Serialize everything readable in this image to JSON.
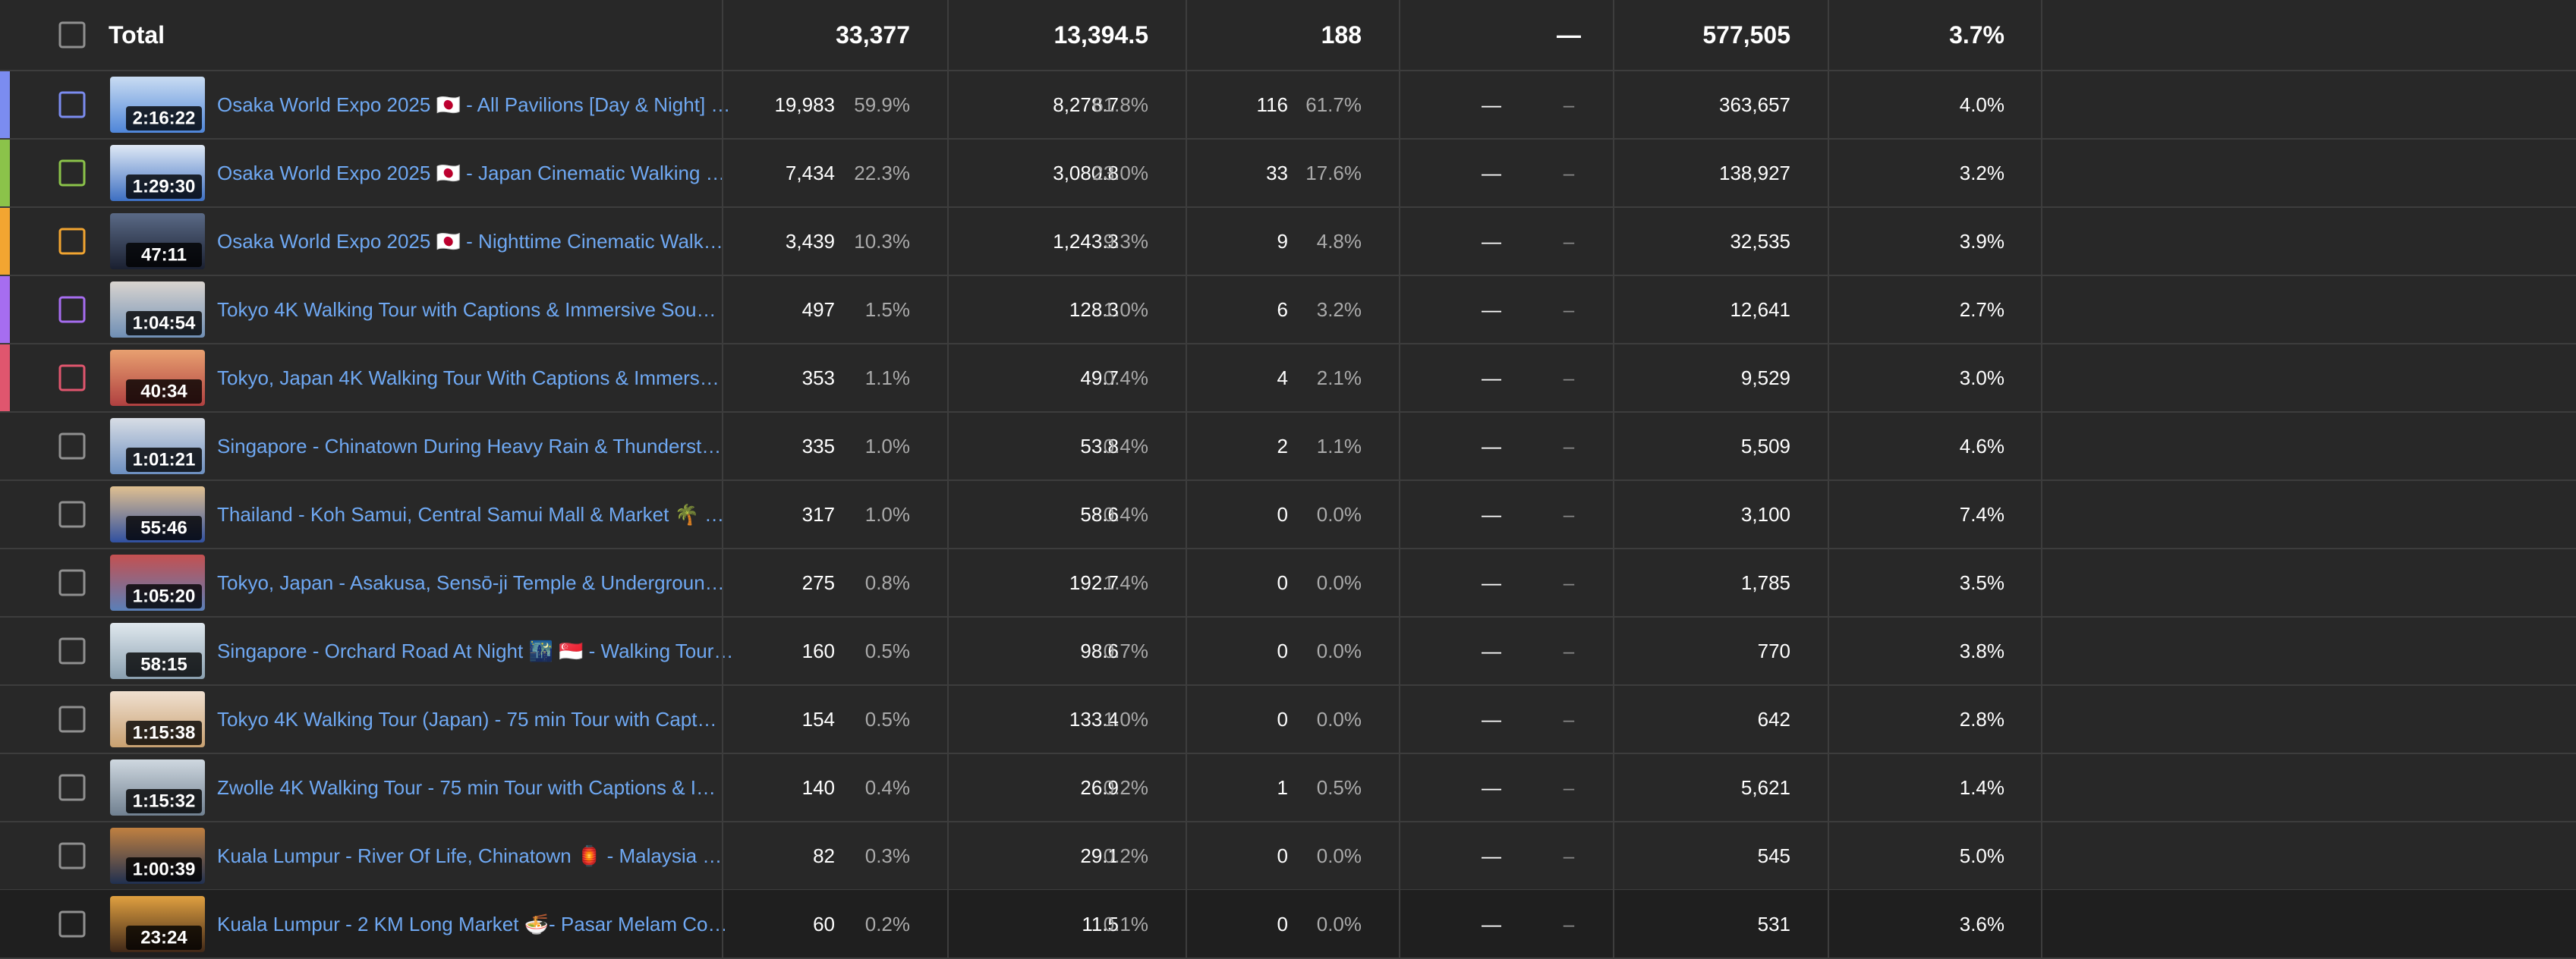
{
  "table": {
    "total": {
      "label": "Total",
      "cells": [
        "33,377",
        "13,394.5",
        "188",
        "—",
        "577,505",
        "3.7%"
      ]
    },
    "rows": [
      {
        "color": "#7b8cf0",
        "duration": "2:16:22",
        "title": "Osaka World Expo 2025 🇯🇵 - All Pavilions [Day & Night] …",
        "cells": [
          "19,983",
          "59.9%",
          "8,278.7",
          "61.8%",
          "116",
          "61.7%",
          "—",
          "–",
          "363,657",
          "4.0%"
        ]
      },
      {
        "color": "#8bc34a",
        "duration": "1:29:30",
        "title": "Osaka World Expo 2025 🇯🇵 - Japan Cinematic Walking …",
        "cells": [
          "7,434",
          "22.3%",
          "3,080.8",
          "23.0%",
          "33",
          "17.6%",
          "—",
          "–",
          "138,927",
          "3.2%"
        ]
      },
      {
        "color": "#f2a531",
        "duration": "47:11",
        "title": "Osaka World Expo 2025 🇯🇵 - Nighttime Cinematic Walk…",
        "cells": [
          "3,439",
          "10.3%",
          "1,243.3",
          "9.3%",
          "9",
          "4.8%",
          "—",
          "–",
          "32,535",
          "3.9%"
        ]
      },
      {
        "color": "#a66df0",
        "duration": "1:04:54",
        "title": "Tokyo 4K Walking Tour with Captions & Immersive Sou…",
        "cells": [
          "497",
          "1.5%",
          "128.3",
          "1.0%",
          "6",
          "3.2%",
          "—",
          "–",
          "12,641",
          "2.7%"
        ]
      },
      {
        "color": "#e0566e",
        "duration": "40:34",
        "title": "Tokyo, Japan 4K Walking Tour With Captions & Immers…",
        "cells": [
          "353",
          "1.1%",
          "49.7",
          "0.4%",
          "4",
          "2.1%",
          "—",
          "–",
          "9,529",
          "3.0%"
        ]
      },
      {
        "duration": "1:01:21",
        "title": "Singapore - Chinatown During Heavy Rain & Thunderst…",
        "cells": [
          "335",
          "1.0%",
          "53.8",
          "0.4%",
          "2",
          "1.1%",
          "—",
          "–",
          "5,509",
          "4.6%"
        ]
      },
      {
        "duration": "55:46",
        "title": "Thailand - Koh Samui, Central Samui Mall & Market 🌴 …",
        "cells": [
          "317",
          "1.0%",
          "58.6",
          "0.4%",
          "0",
          "0.0%",
          "—",
          "–",
          "3,100",
          "7.4%"
        ]
      },
      {
        "duration": "1:05:20",
        "title": "Tokyo, Japan - Asakusa, Sensō-ji Temple & Undergroun…",
        "cells": [
          "275",
          "0.8%",
          "192.7",
          "1.4%",
          "0",
          "0.0%",
          "—",
          "–",
          "1,785",
          "3.5%"
        ]
      },
      {
        "duration": "58:15",
        "title": "Singapore - Orchard Road At Night 🌃 🇸🇬 - Walking Tour…",
        "cells": [
          "160",
          "0.5%",
          "98.6",
          "0.7%",
          "0",
          "0.0%",
          "—",
          "–",
          "770",
          "3.8%"
        ]
      },
      {
        "duration": "1:15:38",
        "title": "Tokyo 4K Walking Tour (Japan) - 75 min Tour with Capt…",
        "cells": [
          "154",
          "0.5%",
          "133.4",
          "1.0%",
          "0",
          "0.0%",
          "—",
          "–",
          "642",
          "2.8%"
        ]
      },
      {
        "duration": "1:15:32",
        "title": "Zwolle 4K Walking Tour - 75 min Tour with Captions & I…",
        "cells": [
          "140",
          "0.4%",
          "26.9",
          "0.2%",
          "1",
          "0.5%",
          "—",
          "–",
          "5,621",
          "1.4%"
        ]
      },
      {
        "duration": "1:00:39",
        "title": "Kuala Lumpur - River Of Life, Chinatown 🏮 - Malaysia …",
        "cells": [
          "82",
          "0.3%",
          "29.1",
          "0.2%",
          "0",
          "0.0%",
          "—",
          "–",
          "545",
          "5.0%"
        ]
      },
      {
        "duration": "23:24",
        "title": "Kuala Lumpur - 2 KM Long Market 🍜- Pasar Melam Co…",
        "cells": [
          "60",
          "0.2%",
          "11.5",
          "0.1%",
          "0",
          "0.0%",
          "—",
          "–",
          "531",
          "3.6%"
        ]
      }
    ]
  }
}
